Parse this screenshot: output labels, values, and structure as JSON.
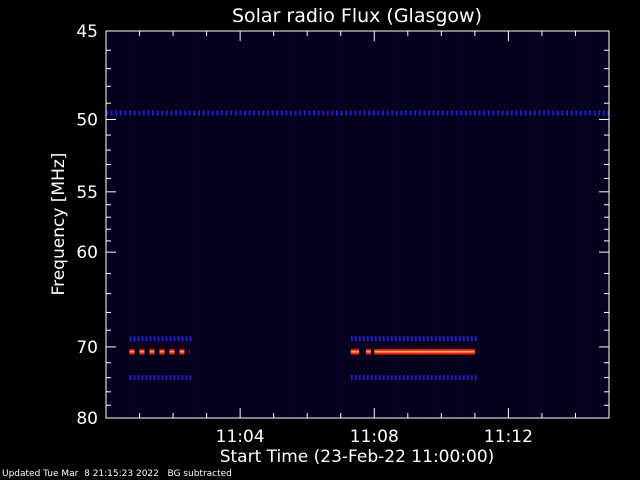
{
  "chart_data": {
    "type": "heatmap",
    "title": "Solar radio Flux (Glasgow)",
    "xlabel": "Start Time (23-Feb-22 11:00:00)",
    "ylabel": "Frequency [MHz]",
    "x_ticks": [
      "11:04",
      "11:08",
      "11:12"
    ],
    "x_tick_minutes": [
      4,
      8,
      12
    ],
    "xlim_minutes": [
      0,
      15
    ],
    "y_ticks": [
      45,
      50,
      55,
      60,
      70,
      80
    ],
    "ylim": [
      45,
      80
    ],
    "y_scale": "reciprocal",
    "features": [
      {
        "name": "50 MHz interference",
        "freq": 49.6,
        "start_min": 0.0,
        "end_min": 15.0,
        "intensity": "low",
        "dashed": true
      },
      {
        "name": "70.6 MHz emission",
        "freq": 70.6,
        "start_min": 0.7,
        "end_min": 2.5,
        "intensity": "high",
        "dashed": true
      },
      {
        "name": "70.6 MHz emission",
        "freq": 70.6,
        "start_min": 7.3,
        "end_min": 7.55,
        "intensity": "high",
        "dashed": false
      },
      {
        "name": "70.6 MHz emission",
        "freq": 70.6,
        "start_min": 7.75,
        "end_min": 7.9,
        "intensity": "high",
        "dashed": false
      },
      {
        "name": "70.6 MHz emission",
        "freq": 70.6,
        "start_min": 8.0,
        "end_min": 11.0,
        "intensity": "high",
        "dashed": false
      },
      {
        "name": "69.0 MHz sideband",
        "freq": 69.0,
        "start_min": 0.7,
        "end_min": 2.5,
        "intensity": "low",
        "dashed": true
      },
      {
        "name": "69.0 MHz sideband",
        "freq": 69.0,
        "start_min": 7.3,
        "end_min": 11.0,
        "intensity": "low",
        "dashed": true
      },
      {
        "name": "74.0 MHz sideband",
        "freq": 74.0,
        "start_min": 0.7,
        "end_min": 2.5,
        "intensity": "low",
        "dashed": true
      },
      {
        "name": "74.0 MHz sideband",
        "freq": 74.0,
        "start_min": 7.3,
        "end_min": 11.0,
        "intensity": "low",
        "dashed": true
      }
    ],
    "colors": {
      "background": "#000000",
      "plot_background": "#04001a",
      "low": "#1d1dcc",
      "high_core": "#ffb060",
      "high_edge": "#e02010",
      "axis": "#ffffff"
    }
  },
  "footer": {
    "updated": "Updated Tue Mar  8 21:15:23 2022   BG subtracted"
  }
}
